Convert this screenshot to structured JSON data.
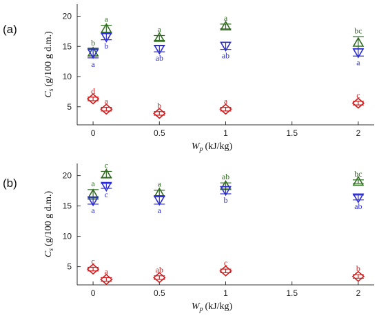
{
  "colors": {
    "series1": "#2e6b1f",
    "series2": "#2b2bd6",
    "series3": "#d01c1c",
    "axis": "#333333"
  },
  "chart_data": [
    {
      "type": "scatter",
      "panel_label": "(a)",
      "xlabel_main": "W",
      "xlabel_sub": "p",
      "xlabel_unit": "(kJ/kg)",
      "ylabel_main": "C",
      "ylabel_sub": "s",
      "ylabel_unit": "(g/100 g d.m.)",
      "xlim": [
        -0.12,
        2.12
      ],
      "ylim": [
        2,
        22
      ],
      "xticks": [
        0,
        0.5,
        1,
        1.5,
        2
      ],
      "xtick_labels": [
        "0",
        "0.5",
        "1",
        "1.5",
        "2"
      ],
      "yticks": [
        5,
        10,
        15,
        20
      ],
      "ytick_labels": [
        "5",
        "10",
        "15",
        "20"
      ],
      "series": [
        {
          "marker": "triangle-up",
          "color": "#2e6b1f",
          "label_position": "above",
          "points": [
            {
              "x": 0,
              "y": 14.0,
              "err": 0.6,
              "sig": "b"
            },
            {
              "x": 0.1,
              "y": 17.9,
              "err": 0.6,
              "sig": "a"
            },
            {
              "x": 0.5,
              "y": 16.4,
              "err": 0.4,
              "sig": "a"
            },
            {
              "x": 1,
              "y": 18.3,
              "err": 0.4,
              "sig": "a"
            },
            {
              "x": 2,
              "y": 15.6,
              "err": 1.0,
              "sig": "bc"
            }
          ]
        },
        {
          "marker": "triangle-down",
          "color": "#2b2bd6",
          "label_position": "below",
          "points": [
            {
              "x": 0,
              "y": 13.9,
              "err": 0.8,
              "sig": "a"
            },
            {
              "x": 0.1,
              "y": 16.6,
              "err": 0.5,
              "sig": "b"
            },
            {
              "x": 0.5,
              "y": 14.6,
              "err": 0.5,
              "sig": "ab"
            },
            {
              "x": 1,
              "y": 15.1,
              "err": 0.6,
              "sig": "ab"
            },
            {
              "x": 2,
              "y": 14.0,
              "err": 0.6,
              "sig": "a"
            }
          ]
        },
        {
          "marker": "diamond",
          "color": "#d01c1c",
          "label_position": "above",
          "points": [
            {
              "x": 0,
              "y": 6.3,
              "err": 0.3,
              "sig": "d"
            },
            {
              "x": 0.1,
              "y": 4.6,
              "err": 0.3,
              "sig": "a"
            },
            {
              "x": 0.5,
              "y": 3.9,
              "err": 0.3,
              "sig": "b"
            },
            {
              "x": 1,
              "y": 4.6,
              "err": 0.3,
              "sig": "a"
            },
            {
              "x": 2,
              "y": 5.6,
              "err": 0.3,
              "sig": "c"
            }
          ]
        }
      ]
    },
    {
      "type": "scatter",
      "panel_label": "(b)",
      "xlabel_main": "W",
      "xlabel_sub": "p",
      "xlabel_unit": "(kJ/kg)",
      "ylabel_main": "C",
      "ylabel_sub": "s",
      "ylabel_unit": "(g/100 g d.m.)",
      "xlim": [
        -0.12,
        2.12
      ],
      "ylim": [
        2,
        22
      ],
      "xticks": [
        0,
        0.5,
        1,
        1.5,
        2
      ],
      "xtick_labels": [
        "0",
        "0.5",
        "1",
        "1.5",
        "2"
      ],
      "yticks": [
        5,
        10,
        15,
        20
      ],
      "ytick_labels": [
        "5",
        "10",
        "15",
        "20"
      ],
      "series": [
        {
          "marker": "triangle-up",
          "color": "#2e6b1f",
          "label_position": "above",
          "points": [
            {
              "x": 0,
              "y": 16.9,
              "err": 0.8,
              "sig": "a"
            },
            {
              "x": 0.1,
              "y": 20.2,
              "err": 0.5,
              "sig": "c"
            },
            {
              "x": 0.5,
              "y": 17.1,
              "err": 0.5,
              "sig": "a"
            },
            {
              "x": 1,
              "y": 18.3,
              "err": 0.5,
              "sig": "ab"
            },
            {
              "x": 2,
              "y": 19.0,
              "err": 0.3,
              "sig": "bc"
            }
          ]
        },
        {
          "marker": "triangle-down",
          "color": "#2b2bd6",
          "label_position": "below",
          "points": [
            {
              "x": 0,
              "y": 15.9,
              "err": 0.6,
              "sig": "a"
            },
            {
              "x": 0.1,
              "y": 18.3,
              "err": 0.4,
              "sig": "c"
            },
            {
              "x": 0.5,
              "y": 16.0,
              "err": 0.7,
              "sig": "a"
            },
            {
              "x": 1,
              "y": 17.6,
              "err": 0.6,
              "sig": "b"
            },
            {
              "x": 2,
              "y": 16.4,
              "err": 0.4,
              "sig": "ab"
            }
          ]
        },
        {
          "marker": "diamond",
          "color": "#d01c1c",
          "label_position": "above",
          "points": [
            {
              "x": 0,
              "y": 4.6,
              "err": 0.3,
              "sig": "c"
            },
            {
              "x": 0.1,
              "y": 2.9,
              "err": 0.3,
              "sig": "a"
            },
            {
              "x": 0.5,
              "y": 3.2,
              "err": 0.3,
              "sig": "ab"
            },
            {
              "x": 1,
              "y": 4.3,
              "err": 0.3,
              "sig": "c"
            },
            {
              "x": 2,
              "y": 3.4,
              "err": 0.3,
              "sig": "b"
            }
          ]
        }
      ]
    }
  ]
}
